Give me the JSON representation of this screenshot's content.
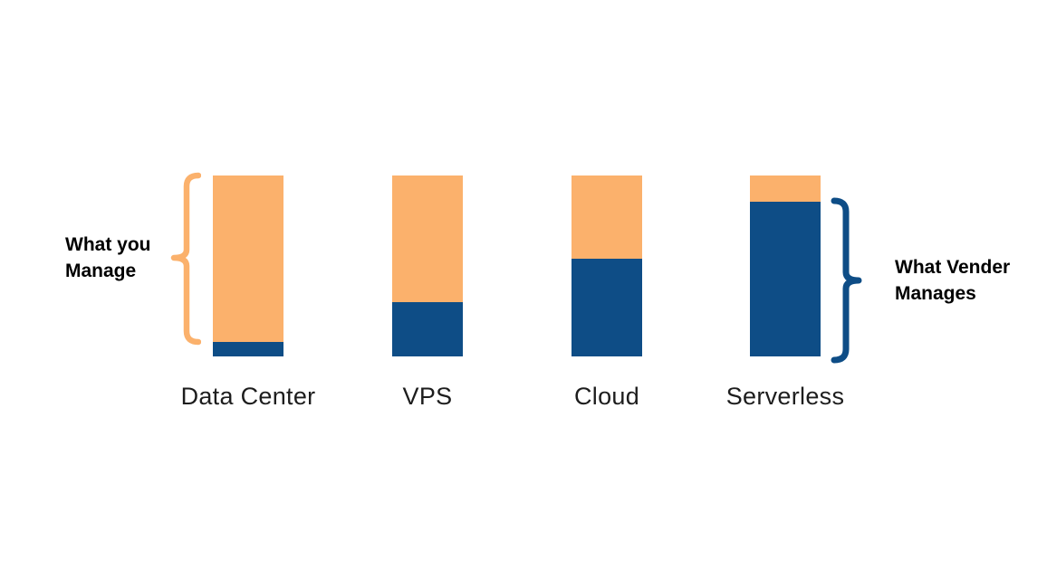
{
  "chart_data": {
    "type": "bar",
    "subtype": "100%-stacked-columns",
    "title": "",
    "xlabel": "",
    "ylabel": "",
    "axes_visible": false,
    "grid": false,
    "legend_position": "none",
    "categories": [
      "Data Center",
      "VPS",
      "Cloud",
      "Serverless"
    ],
    "series": [
      {
        "name": "What you Manage",
        "role": "top-segment",
        "color": "#FBB16C",
        "values": [
          92,
          70,
          46,
          14.5
        ]
      },
      {
        "name": "What Vender Manages",
        "role": "bottom-segment",
        "color": "#0E4D86",
        "values": [
          8,
          30,
          54,
          85.5
        ]
      }
    ],
    "unit": "percent-of-bar-height",
    "annotations": [
      {
        "text": "What you Manage",
        "lines": [
          "What you",
          "Manage"
        ],
        "side": "left",
        "brace_glyph": "{",
        "brace_color": "#FBB16C",
        "refers_to": "orange segment of Data Center bar"
      },
      {
        "text": "What Vender Manages",
        "lines": [
          "What Vender",
          "Manages"
        ],
        "side": "right",
        "brace_glyph": "}",
        "brace_color": "#0E4D86",
        "refers_to": "blue segment of Serverless bar"
      }
    ]
  },
  "colors": {
    "you_manage": "#FBB16C",
    "vendor_manages": "#0E4D86",
    "category_label_text": "#1d1d1d",
    "annotation_text": "#000000",
    "background": "#ffffff"
  }
}
